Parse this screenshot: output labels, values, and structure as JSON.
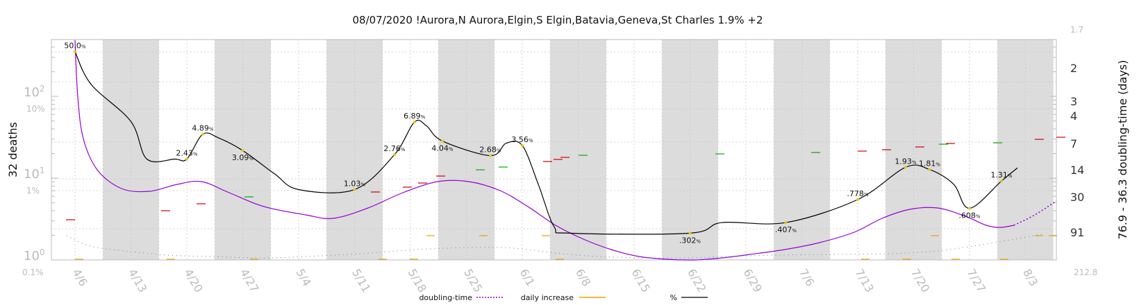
{
  "chart_data": {
    "type": "line",
    "title": "08/07/2020 !Aurora,N Aurora,Elgin,S Elgin,Batavia,Geneva,St Charles 1.9% +2",
    "ylabel_left": "32 deaths",
    "ylabel_right": "76.9 - 36.3 doubling-time (days)",
    "x_ticks": [
      "4/6",
      "4/13",
      "4/20",
      "4/27",
      "5/4",
      "5/11",
      "5/18",
      "5/25",
      "6/1",
      "6/8",
      "6/15",
      "6/22",
      "6/29",
      "7/6",
      "7/13",
      "7/20",
      "7/27",
      "8/3"
    ],
    "x_range_label_left": "0.1%",
    "x_range_label_right": "212.8",
    "y_left_ticks": [
      {
        "label": "10",
        "exp": "0"
      },
      {
        "label": "10",
        "exp": "1"
      },
      {
        "label": "10",
        "exp": "2"
      }
    ],
    "y_pct_ticks": [
      "1%",
      "10%"
    ],
    "y_right_ticks": [
      "1.7",
      "2",
      "3",
      "4",
      "7",
      "14",
      "30",
      "91"
    ],
    "legend": [
      {
        "name": "doubling-time",
        "color": "#9400d3",
        "style": "dotted"
      },
      {
        "name": "daily increase",
        "color": "#e8a000",
        "style": "solid"
      },
      {
        "name": "%",
        "color": "#000000",
        "style": "solid"
      }
    ],
    "annotations": [
      "50.0%",
      "2.43%",
      "4.89%",
      "3.09%",
      "1.03%",
      "2.76%",
      "6.89%",
      "4.04%",
      "2.68%",
      "3.56%",
      ".302%",
      ".407%",
      ".778%",
      "1.93%",
      "1.81%",
      ".608%",
      "1.31%"
    ],
    "percent_series": [
      {
        "day": 0,
        "pct": 50.0
      },
      {
        "day": 2,
        "pct": 20
      },
      {
        "day": 7,
        "pct": 7.0
      },
      {
        "day": 9,
        "pct": 2.43
      },
      {
        "day": 12.5,
        "pct": 2.43
      },
      {
        "day": 14,
        "pct": 2.43
      },
      {
        "day": 16,
        "pct": 4.89
      },
      {
        "day": 18,
        "pct": 4.4
      },
      {
        "day": 21,
        "pct": 3.09
      },
      {
        "day": 25,
        "pct": 1.6
      },
      {
        "day": 28,
        "pct": 1.03
      },
      {
        "day": 35,
        "pct": 1.03
      },
      {
        "day": 40,
        "pct": 2.76
      },
      {
        "day": 42.5,
        "pct": 6.89
      },
      {
        "day": 44,
        "pct": 6.2
      },
      {
        "day": 46,
        "pct": 4.04
      },
      {
        "day": 52,
        "pct": 2.68
      },
      {
        "day": 54,
        "pct": 3.8
      },
      {
        "day": 56,
        "pct": 3.56
      },
      {
        "day": 58,
        "pct": 1.2
      },
      {
        "day": 60,
        "pct": 0.36
      },
      {
        "day": 62,
        "pct": 0.302
      },
      {
        "day": 77,
        "pct": 0.302
      },
      {
        "day": 81,
        "pct": 0.407
      },
      {
        "day": 89,
        "pct": 0.407
      },
      {
        "day": 98,
        "pct": 0.778
      },
      {
        "day": 104,
        "pct": 1.93
      },
      {
        "day": 107,
        "pct": 1.81
      },
      {
        "day": 110,
        "pct": 1.2
      },
      {
        "day": 112,
        "pct": 0.608
      },
      {
        "day": 116,
        "pct": 1.31
      },
      {
        "day": 118,
        "pct": 1.9
      }
    ]
  }
}
